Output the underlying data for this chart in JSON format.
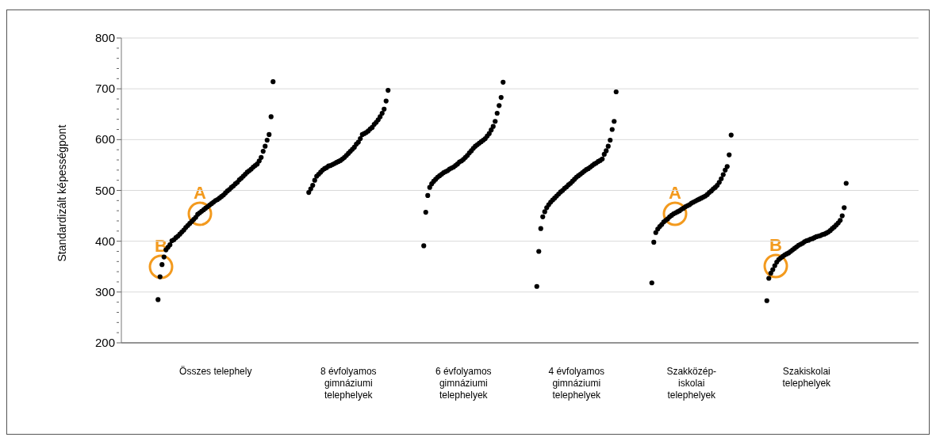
{
  "chart_data": {
    "type": "scatter",
    "ylabel": "Standardizált képességpont",
    "categories": [
      null,
      null,
      null,
      null,
      null,
      null,
      null,
      null,
      null,
      null,
      null,
      null,
      null,
      null,
      null,
      null,
      null,
      null,
      null,
      null,
      null,
      null,
      null,
      null,
      null,
      null,
      null,
      null,
      null,
      null,
      null,
      null,
      null,
      null,
      null,
      null,
      null,
      null,
      null,
      null,
      null,
      null,
      null,
      null,
      null,
      null,
      null,
      "Összes telephely",
      null,
      null,
      null,
      null,
      null,
      null,
      null,
      null,
      null,
      null,
      null,
      null,
      null,
      null,
      null,
      null,
      null,
      null,
      null,
      null,
      null,
      null,
      null,
      null,
      null,
      null,
      null,
      null,
      null,
      null,
      null,
      null,
      null,
      null,
      null,
      null,
      null,
      null,
      null,
      null,
      null,
      null,
      null,
      null,
      null,
      null,
      null,
      null,
      null,
      null,
      null,
      null,
      null,
      null,
      null,
      null,
      null,
      null,
      null,
      null,
      null,
      null,
      null,
      null,
      null,
      null,
      "8 évfolyamos gimnáziumi telephelyek",
      null,
      null,
      null,
      null,
      null,
      null,
      null,
      null,
      null,
      null,
      null,
      null,
      null,
      null,
      null,
      null,
      null,
      null,
      null,
      null,
      null,
      null,
      null,
      null,
      null,
      null,
      null,
      null,
      null,
      null,
      null,
      null,
      null,
      null,
      null,
      null,
      null,
      null,
      null,
      null,
      null,
      null,
      null,
      null,
      null,
      null,
      null,
      null,
      null,
      null,
      null,
      null,
      null,
      null,
      null,
      null,
      null,
      "6 évfolyamos gimnáziumi telephelyek",
      null,
      null,
      null,
      null,
      null,
      null,
      null,
      null,
      null,
      null,
      null,
      null,
      null,
      null,
      null,
      null,
      null,
      null,
      null,
      null,
      null,
      null,
      null,
      null,
      null,
      null,
      null,
      null,
      null,
      null,
      null,
      null,
      null,
      null,
      null,
      null,
      null,
      null,
      null,
      null,
      null,
      null,
      null,
      null,
      null,
      null,
      null,
      null,
      null,
      null,
      null,
      null,
      null,
      null,
      null,
      null,
      "4 évfolyamos gimnáziumi telephelyek",
      null,
      null,
      null,
      null,
      null,
      null,
      null,
      null,
      null,
      null,
      null,
      null,
      null,
      null,
      null,
      null,
      null,
      null,
      null,
      null,
      null,
      null,
      null,
      null,
      null,
      null,
      null,
      null,
      null,
      null,
      null,
      null,
      null,
      null,
      null,
      null,
      null,
      null,
      null,
      null,
      null,
      null,
      null,
      null,
      null,
      null,
      null,
      null,
      null,
      null,
      null,
      null,
      null,
      null,
      null,
      null,
      null,
      "Szakközép-iskolai telephelyek",
      null,
      null,
      null,
      null,
      null,
      null,
      null,
      null,
      null,
      null,
      null,
      null,
      null,
      null,
      null,
      null,
      null,
      null,
      null,
      null,
      null,
      null,
      null,
      null,
      null,
      null,
      null,
      null,
      null,
      null,
      null,
      null,
      null,
      null,
      null,
      null,
      null,
      null,
      null,
      null,
      null,
      null,
      null,
      null,
      null,
      null,
      null,
      null,
      null,
      null,
      null,
      null,
      null,
      null,
      null,
      null,
      null,
      "Szakiskolai telephelyek",
      null,
      null,
      null,
      null,
      null,
      null,
      null,
      null,
      null,
      null,
      null,
      null,
      null,
      null,
      null,
      null,
      null,
      null,
      null,
      null,
      null,
      null,
      null,
      null,
      null,
      null,
      null,
      null,
      null,
      null,
      null,
      null,
      null,
      null,
      null,
      null,
      null,
      null,
      null,
      null,
      null,
      null,
      null,
      null,
      null,
      null,
      null,
      null,
      null,
      null,
      null,
      null,
      null,
      null,
      null,
      null
    ],
    "ylim": [
      200,
      800
    ],
    "yticks": [
      200,
      {
        "value": 220,
        "label": null
      },
      {
        "value": 240,
        "label": null
      },
      {
        "value": 260,
        "label": null
      },
      {
        "value": 280,
        "label": null
      },
      300,
      {
        "value": 320,
        "label": null
      },
      {
        "value": 340,
        "label": null
      },
      {
        "value": 360,
        "label": null
      },
      {
        "value": 380,
        "label": null
      },
      400,
      {
        "value": 420,
        "label": null
      },
      {
        "value": 440,
        "label": null
      },
      {
        "value": 460,
        "label": null
      },
      {
        "value": 480,
        "label": null
      },
      500,
      {
        "value": 520,
        "label": null
      },
      {
        "value": 540,
        "label": null
      },
      {
        "value": 560,
        "label": null
      },
      {
        "value": 580,
        "label": null
      },
      600,
      {
        "value": 620,
        "label": null
      },
      {
        "value": 640,
        "label": null
      },
      {
        "value": 660,
        "label": null
      },
      {
        "value": 680,
        "label": null
      },
      700,
      {
        "value": 720,
        "label": null
      },
      {
        "value": 740,
        "label": null
      },
      {
        "value": 760,
        "label": null
      },
      {
        "value": 780,
        "label": null
      },
      800
    ],
    "grid": "y",
    "marker": "circle",
    "series": [
      {
        "color": "#000000",
        "values": [
          null,
          null,
          null,
          null,
          null,
          null,
          null,
          null,
          null,
          null,
          null,
          null,
          null,
          null,
          null,
          null,
          null,
          null,
          285,
          330,
          354,
          369,
          383,
          388,
          393,
          401,
          403,
          407,
          410,
          414,
          418,
          422,
          427,
          431,
          435,
          439,
          443,
          447,
          453,
          456,
          459,
          462,
          465,
          468,
          471,
          474,
          477,
          480,
          482,
          485,
          488,
          491,
          495,
          499,
          502,
          506,
          509,
          513,
          516,
          521,
          524,
          528,
          532,
          536,
          539,
          542,
          546,
          549,
          552,
          558,
          565,
          577,
          587,
          599,
          610,
          645,
          714,
          null,
          null,
          null,
          null,
          null,
          null,
          null,
          null,
          null,
          null,
          null,
          null,
          null,
          null,
          null,
          null,
          null,
          496,
          503,
          510,
          520,
          528,
          532,
          536,
          540,
          543,
          545,
          548,
          549,
          551,
          553,
          555,
          557,
          559,
          562,
          565,
          569,
          573,
          577,
          581,
          585,
          591,
          595,
          602,
          610,
          612,
          614,
          617,
          621,
          624,
          630,
          634,
          639,
          645,
          652,
          660,
          676,
          697,
          null,
          null,
          null,
          null,
          null,
          null,
          null,
          null,
          null,
          null,
          null,
          null,
          null,
          null,
          null,
          null,
          null,
          391,
          457,
          490,
          506,
          513,
          518,
          522,
          526,
          529,
          532,
          535,
          537,
          539,
          542,
          544,
          546,
          549,
          552,
          556,
          558,
          561,
          565,
          569,
          574,
          578,
          583,
          587,
          590,
          593,
          596,
          599,
          602,
          607,
          612,
          619,
          626,
          636,
          652,
          667,
          683,
          713,
          null,
          null,
          null,
          null,
          null,
          null,
          null,
          null,
          null,
          null,
          null,
          null,
          null,
          null,
          null,
          null,
          311,
          380,
          425,
          448,
          458,
          466,
          472,
          477,
          481,
          485,
          489,
          493,
          497,
          500,
          504,
          507,
          511,
          514,
          518,
          522,
          526,
          529,
          532,
          535,
          538,
          541,
          543,
          546,
          549,
          552,
          554,
          557,
          559,
          562,
          571,
          578,
          587,
          599,
          620,
          636,
          694,
          null,
          null,
          null,
          null,
          null,
          null,
          null,
          null,
          null,
          null,
          null,
          null,
          null,
          null,
          null,
          null,
          null,
          318,
          398,
          417,
          424,
          429,
          433,
          438,
          441,
          444,
          448,
          451,
          454,
          456,
          458,
          460,
          463,
          465,
          468,
          470,
          472,
          475,
          477,
          479,
          481,
          483,
          485,
          487,
          489,
          492,
          496,
          499,
          503,
          506,
          510,
          516,
          523,
          531,
          540,
          547,
          570,
          609,
          null,
          null,
          null,
          null,
          null,
          null,
          null,
          null,
          null,
          null,
          null,
          null,
          null,
          null,
          null,
          null,
          null,
          283,
          327,
          337,
          344,
          352,
          359,
          364,
          367,
          370,
          373,
          375,
          377,
          380,
          383,
          386,
          389,
          392,
          394,
          396,
          399,
          401,
          402,
          404,
          405,
          407,
          409,
          410,
          411,
          413,
          414,
          416,
          418,
          421,
          425,
          428,
          432,
          436,
          441,
          450,
          466,
          514,
          null,
          null,
          null,
          null,
          null,
          null,
          null,
          null,
          null,
          null,
          null,
          null,
          null,
          null,
          null,
          null,
          null,
          null,
          null,
          null,
          null,
          null,
          null,
          null,
          null,
          null,
          null,
          null,
          null,
          null,
          null,
          null,
          null,
          null,
          null,
          null
        ]
      }
    ],
    "annotations": [
      "A",
      "B",
      "A",
      "B"
    ]
  }
}
